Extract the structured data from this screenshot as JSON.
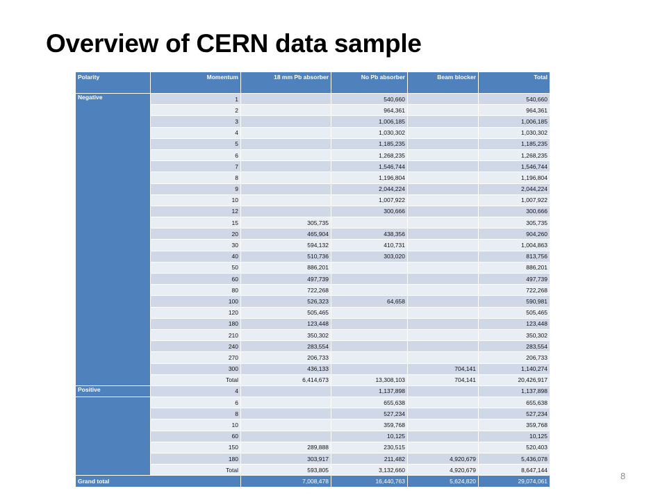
{
  "slide": {
    "title": "Overview of CERN data sample",
    "page_number": "8"
  },
  "table": {
    "headers": [
      "Polarity",
      "Momentum",
      "18 mm Pb absorber",
      "No Pb absorber",
      "Beam blocker",
      "Total"
    ],
    "negative": {
      "label": "Negative",
      "rows": [
        [
          "1",
          "",
          "540,660",
          "",
          "540,660"
        ],
        [
          "2",
          "",
          "964,361",
          "",
          "964,361"
        ],
        [
          "3",
          "",
          "1,006,185",
          "",
          "1,006,185"
        ],
        [
          "4",
          "",
          "1,030,302",
          "",
          "1,030,302"
        ],
        [
          "5",
          "",
          "1,185,235",
          "",
          "1,185,235"
        ],
        [
          "6",
          "",
          "1,268,235",
          "",
          "1,268,235"
        ],
        [
          "7",
          "",
          "1,546,744",
          "",
          "1,546,744"
        ],
        [
          "8",
          "",
          "1,196,804",
          "",
          "1,196,804"
        ],
        [
          "9",
          "",
          "2,044,224",
          "",
          "2,044,224"
        ],
        [
          "10",
          "",
          "1,007,922",
          "",
          "1,007,922"
        ],
        [
          "12",
          "",
          "300,666",
          "",
          "300,666"
        ],
        [
          "15",
          "305,735",
          "",
          "",
          "305,735"
        ],
        [
          "20",
          "465,904",
          "438,356",
          "",
          "904,260"
        ],
        [
          "30",
          "594,132",
          "410,731",
          "",
          "1,004,863"
        ],
        [
          "40",
          "510,736",
          "303,020",
          "",
          "813,756"
        ],
        [
          "50",
          "886,201",
          "",
          "",
          "886,201"
        ],
        [
          "60",
          "497,739",
          "",
          "",
          "497,739"
        ],
        [
          "80",
          "722,268",
          "",
          "",
          "722,268"
        ],
        [
          "100",
          "526,323",
          "64,658",
          "",
          "590,981"
        ],
        [
          "120",
          "505,465",
          "",
          "",
          "505,465"
        ],
        [
          "180",
          "123,448",
          "",
          "",
          "123,448"
        ],
        [
          "210",
          "350,302",
          "",
          "",
          "350,302"
        ],
        [
          "240",
          "283,554",
          "",
          "",
          "283,554"
        ],
        [
          "270",
          "206,733",
          "",
          "",
          "206,733"
        ],
        [
          "300",
          "436,133",
          "",
          "704,141",
          "1,140,274"
        ],
        [
          "Total",
          "6,414,673",
          "13,308,103",
          "704,141",
          "20,426,917"
        ]
      ]
    },
    "positive": {
      "label": "Positive",
      "rows": [
        [
          "4",
          "",
          "1,137,898",
          "",
          "1,137,898"
        ],
        [
          "6",
          "",
          "655,638",
          "",
          "655,638"
        ],
        [
          "8",
          "",
          "527,234",
          "",
          "527,234"
        ],
        [
          "10",
          "",
          "359,768",
          "",
          "359,768"
        ],
        [
          "60",
          "",
          "10,125",
          "",
          "10,125"
        ],
        [
          "150",
          "289,888",
          "230,515",
          "",
          "520,403"
        ],
        [
          "180",
          "303,917",
          "211,482",
          "4,920,679",
          "5,436,078"
        ],
        [
          "Total",
          "593,805",
          "3,132,660",
          "4,920,679",
          "8,647,144"
        ]
      ]
    },
    "grand_total": {
      "label": "Grand total",
      "values": [
        "7,008,478",
        "16,440,763",
        "5,624,820",
        "29,074,061"
      ]
    }
  },
  "colors": {
    "header_blue": "#4f81bd",
    "band_dark": "#d0d8e8",
    "band_light": "#e9edf4"
  }
}
